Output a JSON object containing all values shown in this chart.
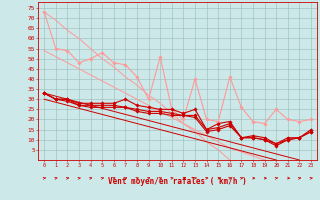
{
  "x": [
    0,
    1,
    2,
    3,
    4,
    5,
    6,
    7,
    8,
    9,
    10,
    11,
    12,
    13,
    14,
    15,
    16,
    17,
    18,
    19,
    20,
    21,
    22,
    23
  ],
  "series_light_pink": [
    73,
    55,
    54,
    48,
    50,
    53,
    48,
    47,
    41,
    30,
    51,
    25,
    20,
    40,
    20,
    19,
    41,
    26,
    19,
    18,
    25,
    20,
    19,
    20
  ],
  "dark_red_s1": [
    33,
    30,
    30,
    28,
    28,
    28,
    28,
    30,
    27,
    26,
    25,
    25,
    23,
    25,
    15,
    18,
    19,
    11,
    12,
    11,
    8,
    11,
    11,
    15
  ],
  "dark_red_s2": [
    33,
    30,
    30,
    27,
    27,
    27,
    27,
    26,
    25,
    24,
    24,
    23,
    22,
    22,
    15,
    16,
    18,
    11,
    11,
    10,
    8,
    10,
    11,
    14
  ],
  "dark_red_s3": [
    33,
    30,
    29,
    27,
    26,
    26,
    26,
    26,
    24,
    23,
    23,
    22,
    22,
    21,
    14,
    15,
    17,
    11,
    11,
    10,
    7,
    10,
    11,
    14
  ],
  "reg_lp1": [
    73,
    69,
    64,
    60,
    55,
    50,
    46,
    41,
    37,
    32,
    28,
    23,
    18,
    14,
    9,
    5,
    0,
    null,
    null,
    null,
    null,
    null,
    null,
    null
  ],
  "reg_lp2": [
    54,
    51,
    48,
    45,
    42,
    39,
    36,
    33,
    30,
    27,
    24,
    21,
    18,
    15,
    12,
    9,
    6,
    4,
    2,
    0,
    null,
    null,
    null,
    null
  ],
  "reg_dr1": [
    33,
    31.5,
    30,
    28.5,
    27,
    25.5,
    24,
    22.5,
    21,
    19.5,
    18,
    16.5,
    15,
    13.5,
    12,
    10.5,
    9,
    7.5,
    6,
    4.5,
    3,
    1.5,
    0,
    null
  ],
  "reg_dr2": [
    30,
    28.5,
    27,
    25.5,
    24,
    22.5,
    21,
    19.5,
    18,
    16.5,
    15,
    13.5,
    12,
    10.5,
    9,
    7.5,
    6,
    4.5,
    3,
    1.5,
    0,
    null,
    null,
    null
  ],
  "xlabel": "Vent moyen/en rafales ( km/h )",
  "yticks": [
    5,
    10,
    15,
    20,
    25,
    30,
    35,
    40,
    45,
    50,
    55,
    60,
    65,
    70,
    75
  ],
  "bg_color": "#cce8e8",
  "grid_color": "#99bbbb",
  "color_dark_red": "#cc0000",
  "color_light_pink": "#ff9999",
  "arrow_angles": [
    45,
    45,
    45,
    45,
    45,
    45,
    45,
    45,
    45,
    45,
    45,
    45,
    0,
    45,
    45,
    0,
    45,
    45,
    0,
    0,
    45,
    0,
    45,
    45
  ]
}
